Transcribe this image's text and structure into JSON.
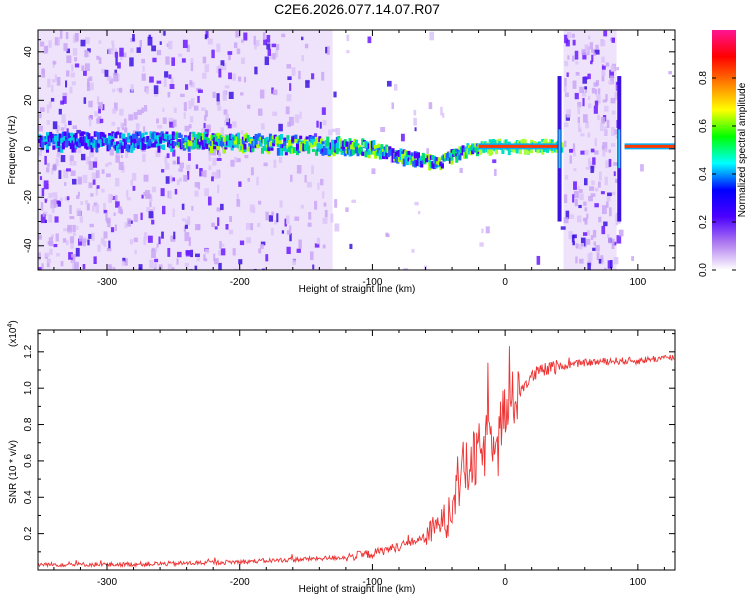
{
  "title": "C2E6.2026.077.14.07.R07",
  "chart_data": [
    {
      "type": "heatmap",
      "title": "C2E6.2026.077.14.07.R07",
      "xlabel": "Height of straight line (km)",
      "ylabel": "Frequency (Hz)",
      "xlim": [
        -352,
        128
      ],
      "ylim": [
        -50,
        49
      ],
      "x_ticks": [
        -300,
        -200,
        -100,
        0,
        100
      ],
      "y_ticks": [
        -40,
        -20,
        0,
        20,
        40
      ],
      "colorbar": {
        "label": "Normalized spectral amplitude",
        "range": [
          0.0,
          1.0
        ],
        "ticks": [
          0.0,
          0.2,
          0.4,
          0.6,
          0.8
        ],
        "colormap": [
          "#ffffff",
          "#b07cf0",
          "#4b00ff",
          "#0000ff",
          "#00ffff",
          "#00ff00",
          "#ffff00",
          "#ff7f00",
          "#ff0000",
          "#ff1493"
        ]
      },
      "trend": {
        "description": "frequency centre of the main spectral line versus height",
        "x": [
          -352,
          -300,
          -250,
          -200,
          -150,
          -120,
          -100,
          -80,
          -60,
          -50,
          -40,
          -30,
          -20,
          -10,
          0,
          40,
          46,
          84,
          90,
          128
        ],
        "y": [
          3,
          3,
          3,
          2.5,
          1.5,
          1,
          0,
          -3,
          -5,
          -6,
          -3,
          -1,
          0,
          1,
          1,
          1,
          0,
          0,
          0,
          0
        ]
      },
      "interference_bands_km": [
        [
          -352,
          -130
        ],
        [
          44,
          84
        ]
      ],
      "vertical_spikes_km": [
        41,
        86
      ]
    },
    {
      "type": "line",
      "title": "",
      "xlabel": "Height of straight line (km)",
      "ylabel": "SNR (10 * v/v)",
      "yscale_label": "(x10",
      "yscale_exp": "4",
      "xlim": [
        -352,
        128
      ],
      "ylim": [
        0,
        13200
      ],
      "x_ticks": [
        -300,
        -200,
        -100,
        0,
        100
      ],
      "y_ticks": [
        2000,
        4000,
        6000,
        8000,
        10000,
        12000
      ],
      "y_tick_labels": [
        "0.2",
        "0.4",
        "0.6",
        "0.8",
        "1.0",
        "1.2"
      ],
      "color": "#ee3333",
      "series": [
        {
          "name": "SNR",
          "x": [
            -352,
            -300,
            -250,
            -200,
            -150,
            -120,
            -100,
            -80,
            -60,
            -50,
            -45,
            -40,
            -35,
            -30,
            -25,
            -20,
            -15,
            -10,
            -5,
            0,
            5,
            10,
            15,
            20,
            25,
            30,
            35,
            40,
            50,
            60,
            80,
            100,
            105,
            110,
            128
          ],
          "y": [
            300,
            300,
            350,
            450,
            600,
            700,
            900,
            1300,
            1800,
            2500,
            3000,
            4000,
            5000,
            5500,
            5800,
            6300,
            6800,
            7500,
            8200,
            8600,
            9200,
            9800,
            10200,
            10600,
            10900,
            11000,
            11100,
            11200,
            11300,
            11400,
            11500,
            11500,
            11550,
            11600,
            11700
          ]
        }
      ]
    }
  ]
}
